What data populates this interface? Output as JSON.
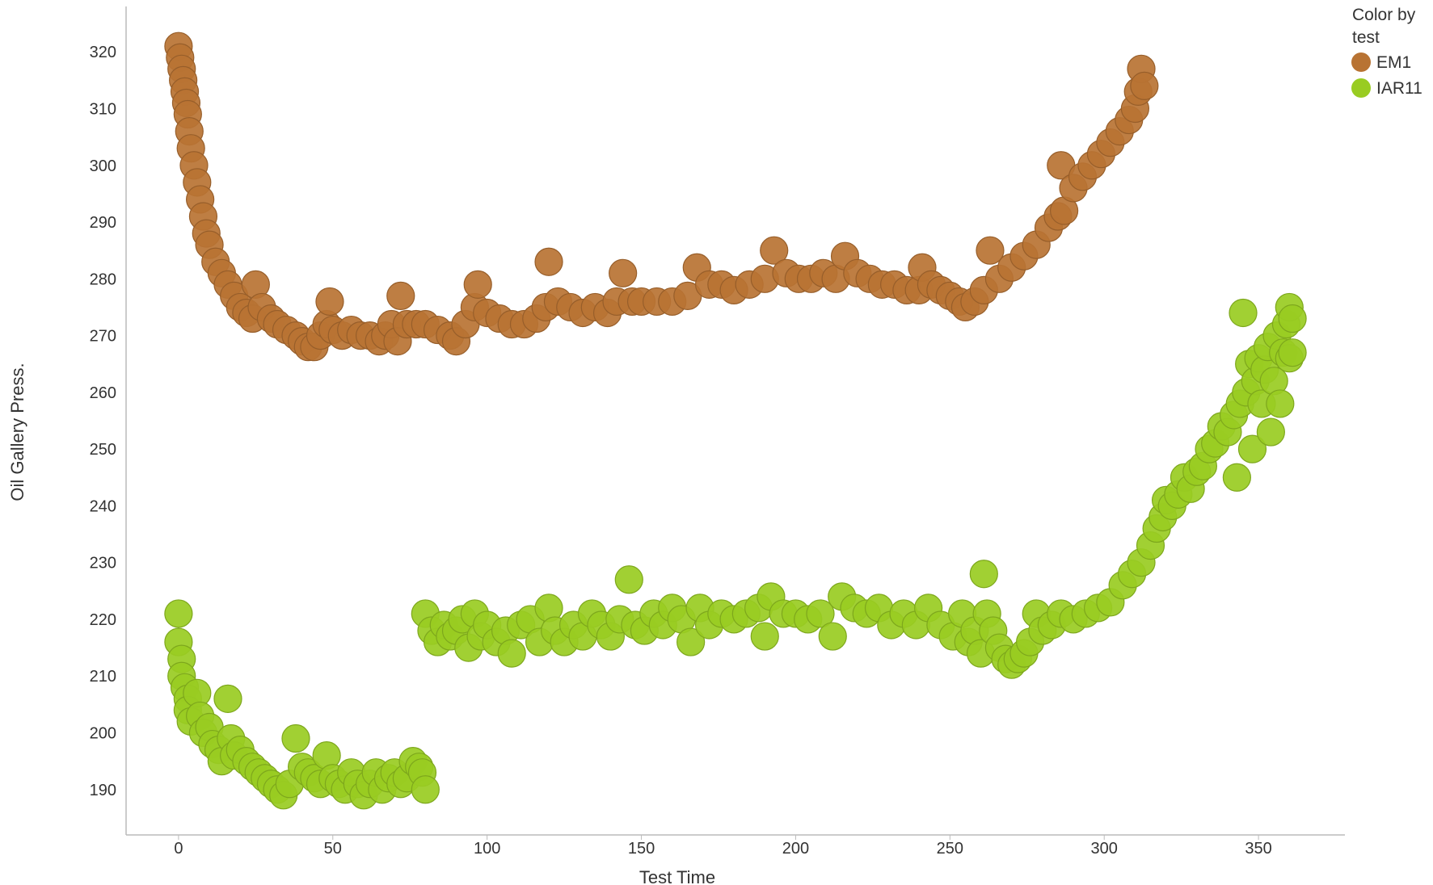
{
  "chart_data": {
    "type": "scatter",
    "xlabel": "Test Time",
    "ylabel": "Oil Gallery Press.",
    "xlim": [
      -17,
      378
    ],
    "ylim": [
      182,
      328
    ],
    "x_ticks": [
      0,
      50,
      100,
      150,
      200,
      250,
      300,
      350
    ],
    "y_ticks": [
      190,
      200,
      210,
      220,
      230,
      240,
      250,
      260,
      270,
      280,
      290,
      300,
      310,
      320
    ],
    "grid": false,
    "legend": {
      "title": "Color by test",
      "title_lines": [
        "Color by",
        "test"
      ],
      "placement": "top-right"
    },
    "series": [
      {
        "name": "EM1",
        "color": "#b87333",
        "points": [
          [
            0,
            321
          ],
          [
            0.5,
            319
          ],
          [
            1,
            317
          ],
          [
            1.5,
            315
          ],
          [
            2,
            313
          ],
          [
            2.5,
            311
          ],
          [
            3,
            309
          ],
          [
            3.5,
            306
          ],
          [
            4,
            303
          ],
          [
            5,
            300
          ],
          [
            6,
            297
          ],
          [
            7,
            294
          ],
          [
            8,
            291
          ],
          [
            9,
            288
          ],
          [
            10,
            286
          ],
          [
            12,
            283
          ],
          [
            14,
            281
          ],
          [
            16,
            279
          ],
          [
            18,
            277
          ],
          [
            20,
            275
          ],
          [
            22,
            274
          ],
          [
            24,
            273
          ],
          [
            25,
            279
          ],
          [
            27,
            275
          ],
          [
            30,
            273
          ],
          [
            32,
            272
          ],
          [
            35,
            271
          ],
          [
            38,
            270
          ],
          [
            40,
            269
          ],
          [
            42,
            268
          ],
          [
            44,
            268
          ],
          [
            46,
            270
          ],
          [
            48,
            272
          ],
          [
            49,
            276
          ],
          [
            50,
            271
          ],
          [
            53,
            270
          ],
          [
            56,
            271
          ],
          [
            59,
            270
          ],
          [
            62,
            270
          ],
          [
            65,
            269
          ],
          [
            67,
            270
          ],
          [
            69,
            272
          ],
          [
            71,
            269
          ],
          [
            72,
            277
          ],
          [
            74,
            272
          ],
          [
            77,
            272
          ],
          [
            80,
            272
          ],
          [
            84,
            271
          ],
          [
            88,
            270
          ],
          [
            90,
            269
          ],
          [
            93,
            272
          ],
          [
            96,
            275
          ],
          [
            97,
            279
          ],
          [
            100,
            274
          ],
          [
            104,
            273
          ],
          [
            108,
            272
          ],
          [
            112,
            272
          ],
          [
            116,
            273
          ],
          [
            119,
            275
          ],
          [
            120,
            283
          ],
          [
            123,
            276
          ],
          [
            127,
            275
          ],
          [
            131,
            274
          ],
          [
            135,
            275
          ],
          [
            139,
            274
          ],
          [
            142,
            276
          ],
          [
            144,
            281
          ],
          [
            147,
            276
          ],
          [
            150,
            276
          ],
          [
            155,
            276
          ],
          [
            160,
            276
          ],
          [
            165,
            277
          ],
          [
            168,
            282
          ],
          [
            172,
            279
          ],
          [
            176,
            279
          ],
          [
            180,
            278
          ],
          [
            185,
            279
          ],
          [
            190,
            280
          ],
          [
            193,
            285
          ],
          [
            197,
            281
          ],
          [
            201,
            280
          ],
          [
            205,
            280
          ],
          [
            209,
            281
          ],
          [
            213,
            280
          ],
          [
            216,
            284
          ],
          [
            220,
            281
          ],
          [
            224,
            280
          ],
          [
            228,
            279
          ],
          [
            232,
            279
          ],
          [
            236,
            278
          ],
          [
            240,
            278
          ],
          [
            241,
            282
          ],
          [
            244,
            279
          ],
          [
            247,
            278
          ],
          [
            250,
            277
          ],
          [
            253,
            276
          ],
          [
            255,
            275
          ],
          [
            258,
            276
          ],
          [
            261,
            278
          ],
          [
            263,
            285
          ],
          [
            266,
            280
          ],
          [
            270,
            282
          ],
          [
            274,
            284
          ],
          [
            278,
            286
          ],
          [
            282,
            289
          ],
          [
            285,
            291
          ],
          [
            286,
            300
          ],
          [
            287,
            292
          ],
          [
            290,
            296
          ],
          [
            293,
            298
          ],
          [
            296,
            300
          ],
          [
            299,
            302
          ],
          [
            302,
            304
          ],
          [
            305,
            306
          ],
          [
            308,
            308
          ],
          [
            310,
            310
          ],
          [
            311,
            313
          ],
          [
            312,
            317
          ],
          [
            313,
            314
          ]
        ]
      },
      {
        "name": "IAR11",
        "color": "#99cc22",
        "points": [
          [
            0,
            221
          ],
          [
            0,
            216
          ],
          [
            1,
            213
          ],
          [
            1,
            210
          ],
          [
            2,
            208
          ],
          [
            3,
            206
          ],
          [
            3,
            204
          ],
          [
            4,
            202
          ],
          [
            6,
            207
          ],
          [
            7,
            203
          ],
          [
            8,
            200
          ],
          [
            10,
            201
          ],
          [
            11,
            198
          ],
          [
            13,
            197
          ],
          [
            14,
            195
          ],
          [
            16,
            206
          ],
          [
            17,
            199
          ],
          [
            18,
            196
          ],
          [
            20,
            197
          ],
          [
            22,
            195
          ],
          [
            24,
            194
          ],
          [
            26,
            193
          ],
          [
            28,
            192
          ],
          [
            30,
            191
          ],
          [
            32,
            190
          ],
          [
            34,
            189
          ],
          [
            36,
            191
          ],
          [
            38,
            199
          ],
          [
            40,
            194
          ],
          [
            42,
            193
          ],
          [
            44,
            192
          ],
          [
            46,
            191
          ],
          [
            48,
            196
          ],
          [
            50,
            192
          ],
          [
            52,
            191
          ],
          [
            54,
            190
          ],
          [
            56,
            193
          ],
          [
            58,
            191
          ],
          [
            60,
            189
          ],
          [
            62,
            191
          ],
          [
            64,
            193
          ],
          [
            66,
            190
          ],
          [
            68,
            192
          ],
          [
            70,
            193
          ],
          [
            72,
            191
          ],
          [
            74,
            192
          ],
          [
            76,
            195
          ],
          [
            78,
            194
          ],
          [
            79,
            193
          ],
          [
            80,
            190
          ],
          [
            80,
            221
          ],
          [
            82,
            218
          ],
          [
            84,
            216
          ],
          [
            86,
            219
          ],
          [
            88,
            217
          ],
          [
            90,
            218
          ],
          [
            92,
            220
          ],
          [
            94,
            215
          ],
          [
            96,
            221
          ],
          [
            98,
            217
          ],
          [
            100,
            219
          ],
          [
            103,
            216
          ],
          [
            106,
            218
          ],
          [
            108,
            214
          ],
          [
            111,
            219
          ],
          [
            114,
            220
          ],
          [
            117,
            216
          ],
          [
            120,
            222
          ],
          [
            122,
            218
          ],
          [
            125,
            216
          ],
          [
            128,
            219
          ],
          [
            131,
            217
          ],
          [
            134,
            221
          ],
          [
            137,
            219
          ],
          [
            140,
            217
          ],
          [
            143,
            220
          ],
          [
            146,
            227
          ],
          [
            148,
            219
          ],
          [
            151,
            218
          ],
          [
            154,
            221
          ],
          [
            157,
            219
          ],
          [
            160,
            222
          ],
          [
            163,
            220
          ],
          [
            166,
            216
          ],
          [
            169,
            222
          ],
          [
            172,
            219
          ],
          [
            176,
            221
          ],
          [
            180,
            220
          ],
          [
            184,
            221
          ],
          [
            188,
            222
          ],
          [
            190,
            217
          ],
          [
            192,
            224
          ],
          [
            196,
            221
          ],
          [
            200,
            221
          ],
          [
            204,
            220
          ],
          [
            208,
            221
          ],
          [
            212,
            217
          ],
          [
            215,
            224
          ],
          [
            219,
            222
          ],
          [
            223,
            221
          ],
          [
            227,
            222
          ],
          [
            231,
            219
          ],
          [
            235,
            221
          ],
          [
            239,
            219
          ],
          [
            243,
            222
          ],
          [
            247,
            219
          ],
          [
            251,
            217
          ],
          [
            254,
            221
          ],
          [
            256,
            216
          ],
          [
            258,
            218
          ],
          [
            260,
            214
          ],
          [
            261,
            228
          ],
          [
            262,
            221
          ],
          [
            264,
            218
          ],
          [
            266,
            215
          ],
          [
            268,
            213
          ],
          [
            270,
            212
          ],
          [
            272,
            213
          ],
          [
            274,
            214
          ],
          [
            276,
            216
          ],
          [
            278,
            221
          ],
          [
            280,
            218
          ],
          [
            283,
            219
          ],
          [
            286,
            221
          ],
          [
            290,
            220
          ],
          [
            294,
            221
          ],
          [
            298,
            222
          ],
          [
            302,
            223
          ],
          [
            306,
            226
          ],
          [
            309,
            228
          ],
          [
            312,
            230
          ],
          [
            315,
            233
          ],
          [
            317,
            236
          ],
          [
            319,
            238
          ],
          [
            320,
            241
          ],
          [
            322,
            240
          ],
          [
            324,
            242
          ],
          [
            326,
            245
          ],
          [
            328,
            243
          ],
          [
            330,
            246
          ],
          [
            332,
            247
          ],
          [
            334,
            250
          ],
          [
            336,
            251
          ],
          [
            338,
            254
          ],
          [
            340,
            253
          ],
          [
            342,
            256
          ],
          [
            343,
            245
          ],
          [
            344,
            258
          ],
          [
            345,
            274
          ],
          [
            346,
            260
          ],
          [
            347,
            265
          ],
          [
            348,
            250
          ],
          [
            349,
            262
          ],
          [
            350,
            266
          ],
          [
            351,
            258
          ],
          [
            352,
            264
          ],
          [
            353,
            268
          ],
          [
            354,
            253
          ],
          [
            355,
            262
          ],
          [
            356,
            270
          ],
          [
            357,
            258
          ],
          [
            358,
            267
          ],
          [
            359,
            272
          ],
          [
            360,
            275
          ],
          [
            360,
            266
          ],
          [
            361,
            273
          ],
          [
            361,
            267
          ]
        ]
      }
    ]
  }
}
